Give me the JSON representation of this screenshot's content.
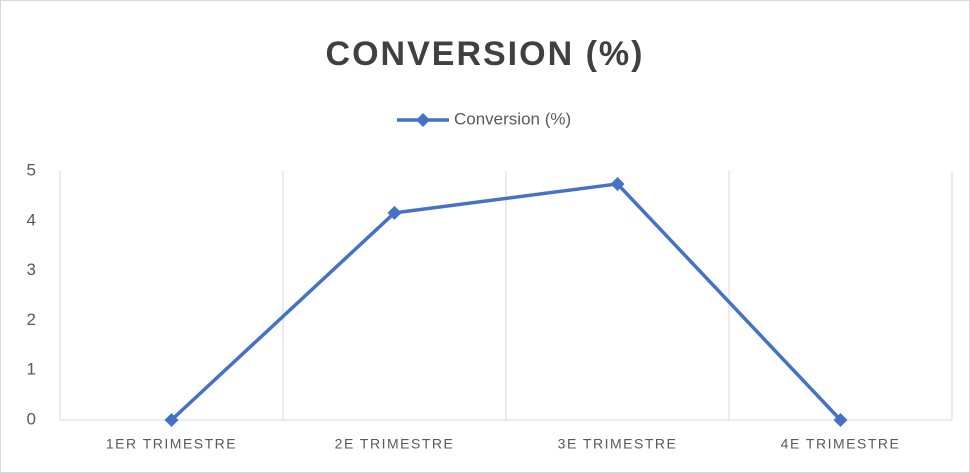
{
  "chart_data": {
    "type": "line",
    "title": "CONVERSION (%)",
    "categories": [
      "1ER TRIMESTRE",
      "2E TRIMESTRE",
      "3E TRIMESTRE",
      "4E TRIMESTRE"
    ],
    "series": [
      {
        "name": "Conversion (%)",
        "color": "#4472c4",
        "values": [
          0,
          4.16,
          4.74,
          0
        ]
      }
    ],
    "ylim": [
      0,
      5
    ],
    "yticks": [
      0,
      1,
      2,
      3,
      4,
      5
    ],
    "grid": true,
    "legend": "top"
  }
}
